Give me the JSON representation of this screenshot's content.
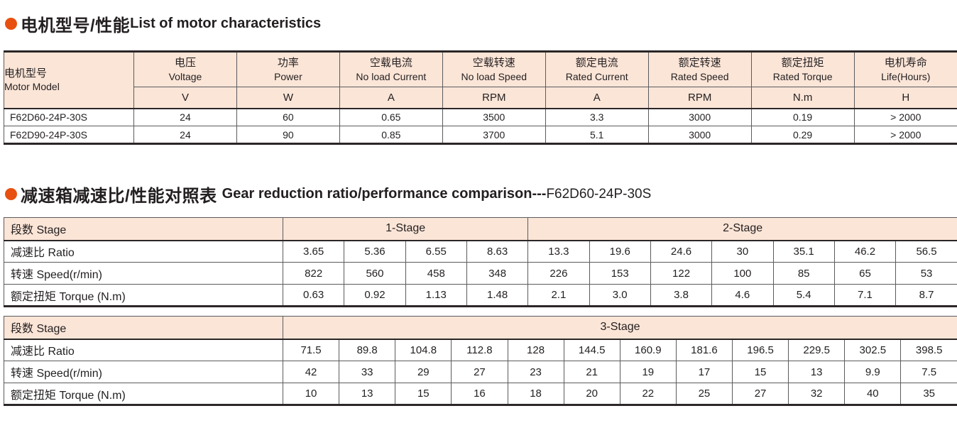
{
  "colors": {
    "accent": "#e8500f",
    "header_bg": "#fbe5d7",
    "border_dark": "#2b2627",
    "border_thin": "#5b5b5e"
  },
  "section1": {
    "title_zh": "电机型号/性能",
    "title_en": "List of motor characteristics",
    "table": {
      "corner_zh": "电机型号",
      "corner_en": "Motor Model",
      "columns": [
        {
          "zh": "电压",
          "en": "Voltage",
          "unit": "V"
        },
        {
          "zh": "功率",
          "en": "Power",
          "unit": "W"
        },
        {
          "zh": "空载电流",
          "en": "No load Current",
          "unit": "A"
        },
        {
          "zh": "空载转速",
          "en": "No load Speed",
          "unit": "RPM"
        },
        {
          "zh": "额定电流",
          "en": "Rated Current",
          "unit": "A"
        },
        {
          "zh": "额定转速",
          "en": "Rated Speed",
          "unit": "RPM"
        },
        {
          "zh": "额定扭矩",
          "en": "Rated Torque",
          "unit": "N.m"
        },
        {
          "zh": "电机寿命",
          "en": "Life(Hours)",
          "unit": "H"
        }
      ],
      "rows": [
        {
          "model": "F62D60-24P-30S",
          "values": [
            "24",
            "60",
            "0.65",
            "3500",
            "3.3",
            "3000",
            "0.19",
            "> 2000"
          ]
        },
        {
          "model": "F62D90-24P-30S",
          "values": [
            "24",
            "90",
            "0.85",
            "3700",
            "5.1",
            "3000",
            "0.29",
            "> 2000"
          ]
        }
      ]
    }
  },
  "section2": {
    "title_zh": "减速箱减速比/性能对照表",
    "title_en": "Gear reduction ratio/performance comparison---",
    "title_suffix": "F62D60-24P-30S",
    "table_stage12": {
      "stage_label": "段数 Stage",
      "groups": [
        {
          "label": "1-Stage",
          "span": 4
        },
        {
          "label": "2-Stage",
          "span": 7
        }
      ],
      "rows": [
        {
          "label": "减速比 Ratio",
          "values": [
            "3.65",
            "5.36",
            "6.55",
            "8.63",
            "13.3",
            "19.6",
            "24.6",
            "30",
            "35.1",
            "46.2",
            "56.5"
          ]
        },
        {
          "label": "转速 Speed(r/min)",
          "values": [
            "822",
            "560",
            "458",
            "348",
            "226",
            "153",
            "122",
            "100",
            "85",
            "65",
            "53"
          ]
        },
        {
          "label": "额定扭矩 Torque (N.m)",
          "values": [
            "0.63",
            "0.92",
            "1.13",
            "1.48",
            "2.1",
            "3.0",
            "3.8",
            "4.6",
            "5.4",
            "7.1",
            "8.7"
          ]
        }
      ]
    },
    "table_stage3": {
      "stage_label": "段数 Stage",
      "groups": [
        {
          "label": "3-Stage",
          "span": 12
        }
      ],
      "rows": [
        {
          "label": "减速比 Ratio",
          "values": [
            "71.5",
            "89.8",
            "104.8",
            "112.8",
            "128",
            "144.5",
            "160.9",
            "181.6",
            "196.5",
            "229.5",
            "302.5",
            "398.5"
          ]
        },
        {
          "label": "转速 Speed(r/min)",
          "values": [
            "42",
            "33",
            "29",
            "27",
            "23",
            "21",
            "19",
            "17",
            "15",
            "13",
            "9.9",
            "7.5"
          ]
        },
        {
          "label": "额定扭矩 Torque (N.m)",
          "values": [
            "10",
            "13",
            "15",
            "16",
            "18",
            "20",
            "22",
            "25",
            "27",
            "32",
            "40",
            "35"
          ]
        }
      ]
    }
  }
}
